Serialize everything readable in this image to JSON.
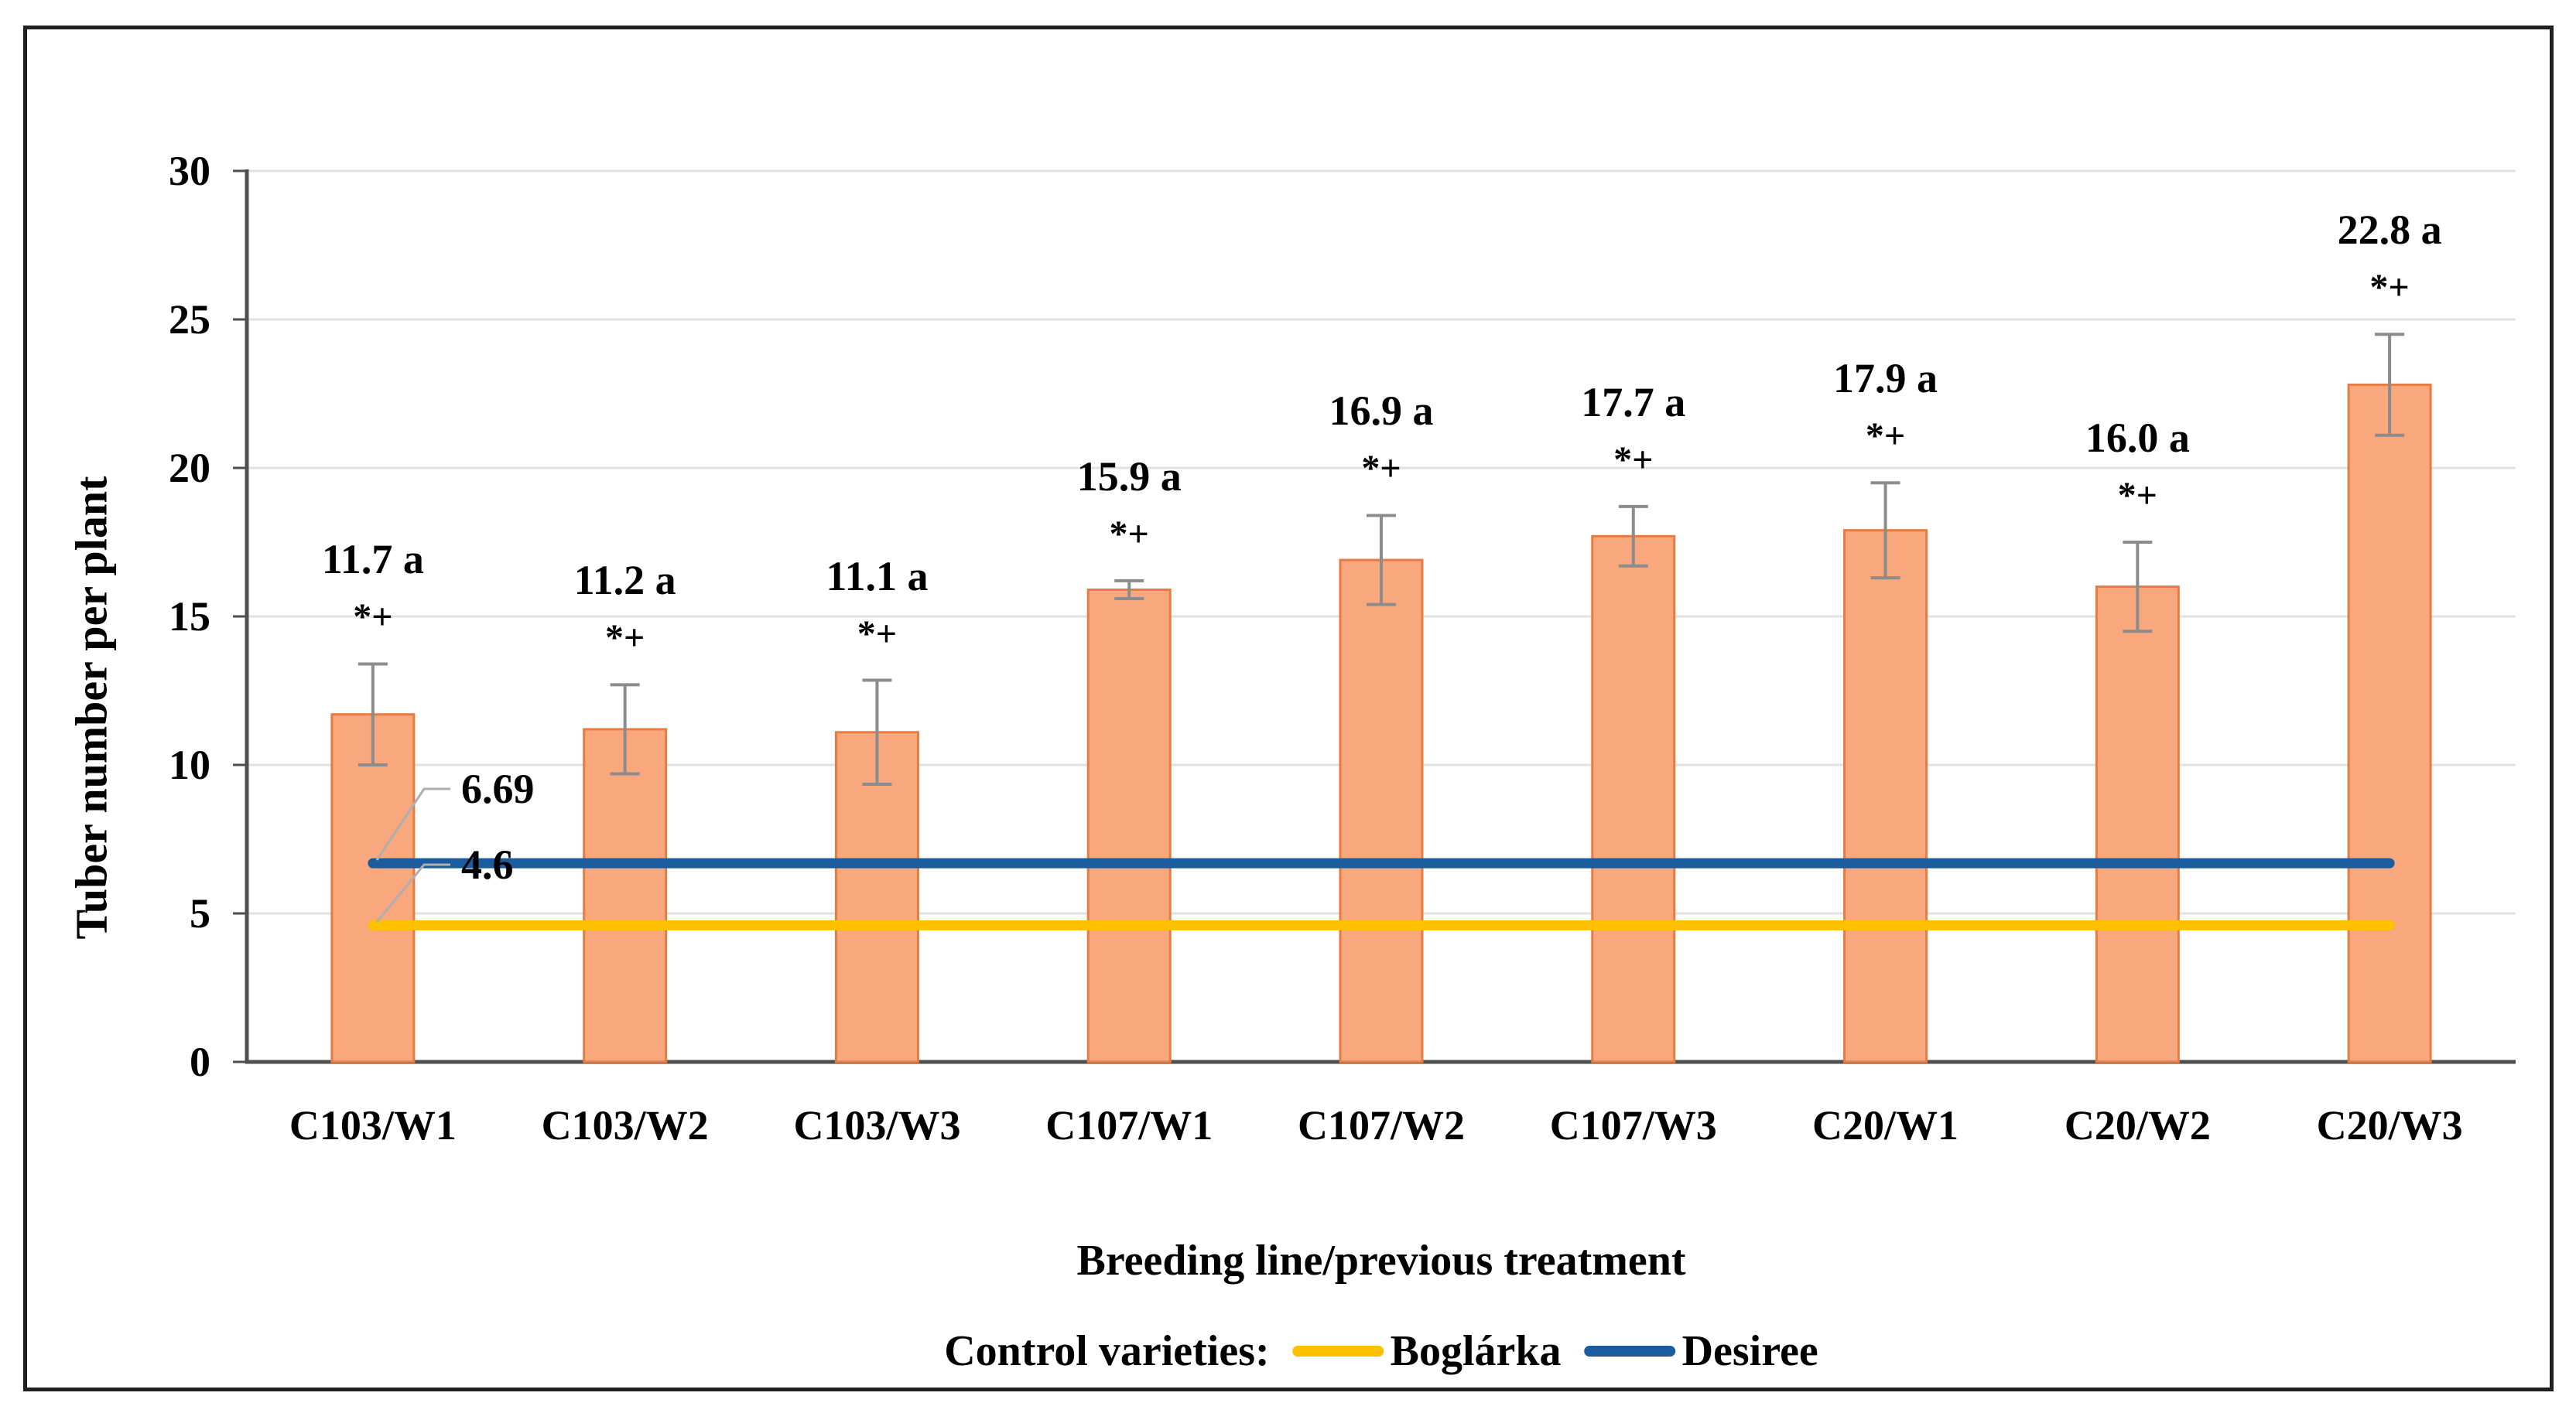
{
  "chart_data": {
    "type": "bar",
    "title": "",
    "ylabel": "Tuber number per plant",
    "xlabel": "Breeding line/previous treatment",
    "ylim": [
      0,
      30
    ],
    "y_ticks": [
      0,
      5,
      10,
      15,
      20,
      25,
      30
    ],
    "grid": "horizontal",
    "legend_position": "bottom",
    "categories": [
      "C103/W1",
      "C103/W2",
      "C103/W3",
      "C107/W1",
      "C107/W2",
      "C107/W3",
      "C20/W1",
      "C20/W2",
      "C20/W3"
    ],
    "values": [
      11.7,
      11.2,
      11.1,
      15.9,
      16.9,
      17.7,
      17.9,
      16.0,
      22.8
    ],
    "errors": [
      1.7,
      1.5,
      1.75,
      0.3,
      1.5,
      1.0,
      1.6,
      1.5,
      1.7
    ],
    "bar_value_labels": [
      "11.7 a",
      "11.2 a",
      "11.1 a",
      "15.9 a",
      "16.9 a",
      "17.7 a",
      "17.9 a",
      "16.0 a",
      "22.8 a"
    ],
    "significance_labels": [
      "*+",
      "*+",
      "*+",
      "*+",
      "*+",
      "*+",
      "*+",
      "*+",
      "*+"
    ],
    "reference_lines": [
      {
        "name": "Desiree",
        "value": 6.69,
        "label": "6.69",
        "color": "#1A5C9E"
      },
      {
        "name": "Boglárka",
        "value": 4.6,
        "label": "4.6",
        "color": "#FFC000"
      }
    ]
  },
  "legend": {
    "title": "Control varieties:",
    "items": [
      {
        "label": "Boglárka",
        "color": "#FFC000"
      },
      {
        "label": "Desiree",
        "color": "#1A5C9E"
      }
    ]
  },
  "colors": {
    "bar_fill": "#F9A77C",
    "bar_border": "#E87B42",
    "error_bar": "#8C8C8C",
    "gridline": "#E2E2E2",
    "axis": "#4F4F4F",
    "leader": "#AFAFAF",
    "figure_border": "#202020",
    "text": "#000000"
  }
}
